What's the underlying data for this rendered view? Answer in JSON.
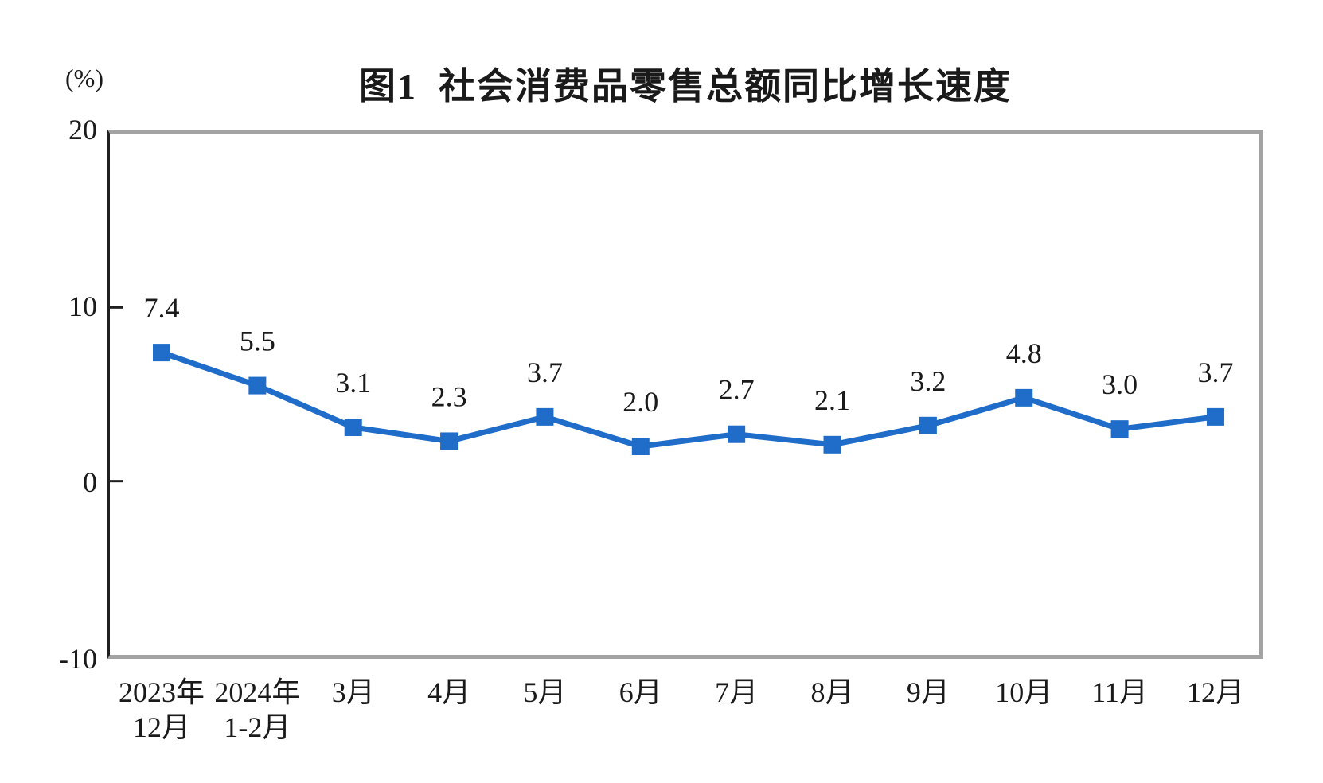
{
  "chart": {
    "title_display": "图1  社会消费品零售总额同比增长速度",
    "unit_label": "(%)"
  },
  "chart_data": {
    "type": "line",
    "title": "图1 社会消费品零售总额同比增长速度",
    "unit": "(%)",
    "categories": [
      [
        "2023年",
        "12月"
      ],
      [
        "2024年",
        "1-2月"
      ],
      [
        "3月"
      ],
      [
        "4月"
      ],
      [
        "5月"
      ],
      [
        "6月"
      ],
      [
        "7月"
      ],
      [
        "8月"
      ],
      [
        "9月"
      ],
      [
        "10月"
      ],
      [
        "11月"
      ],
      [
        "12月"
      ]
    ],
    "values": [
      7.4,
      5.5,
      3.1,
      2.3,
      3.7,
      2.0,
      2.7,
      2.1,
      3.2,
      4.8,
      3.0,
      3.7
    ],
    "data_labels": [
      "7.4",
      "5.5",
      "3.1",
      "2.3",
      "3.7",
      "2.0",
      "2.7",
      "2.1",
      "3.2",
      "4.8",
      "3.0",
      "3.7"
    ],
    "ylim": [
      -10,
      20
    ],
    "yticks": [
      20,
      10,
      0,
      -10
    ],
    "grid": false,
    "legend": "none",
    "marker": "square",
    "colors": {
      "line": "#1f6dc9",
      "marker": "#1f6dc9",
      "text": "#1a1a1a",
      "plot_border": "#a3a3a3",
      "axis": "#1f1f1f"
    }
  }
}
